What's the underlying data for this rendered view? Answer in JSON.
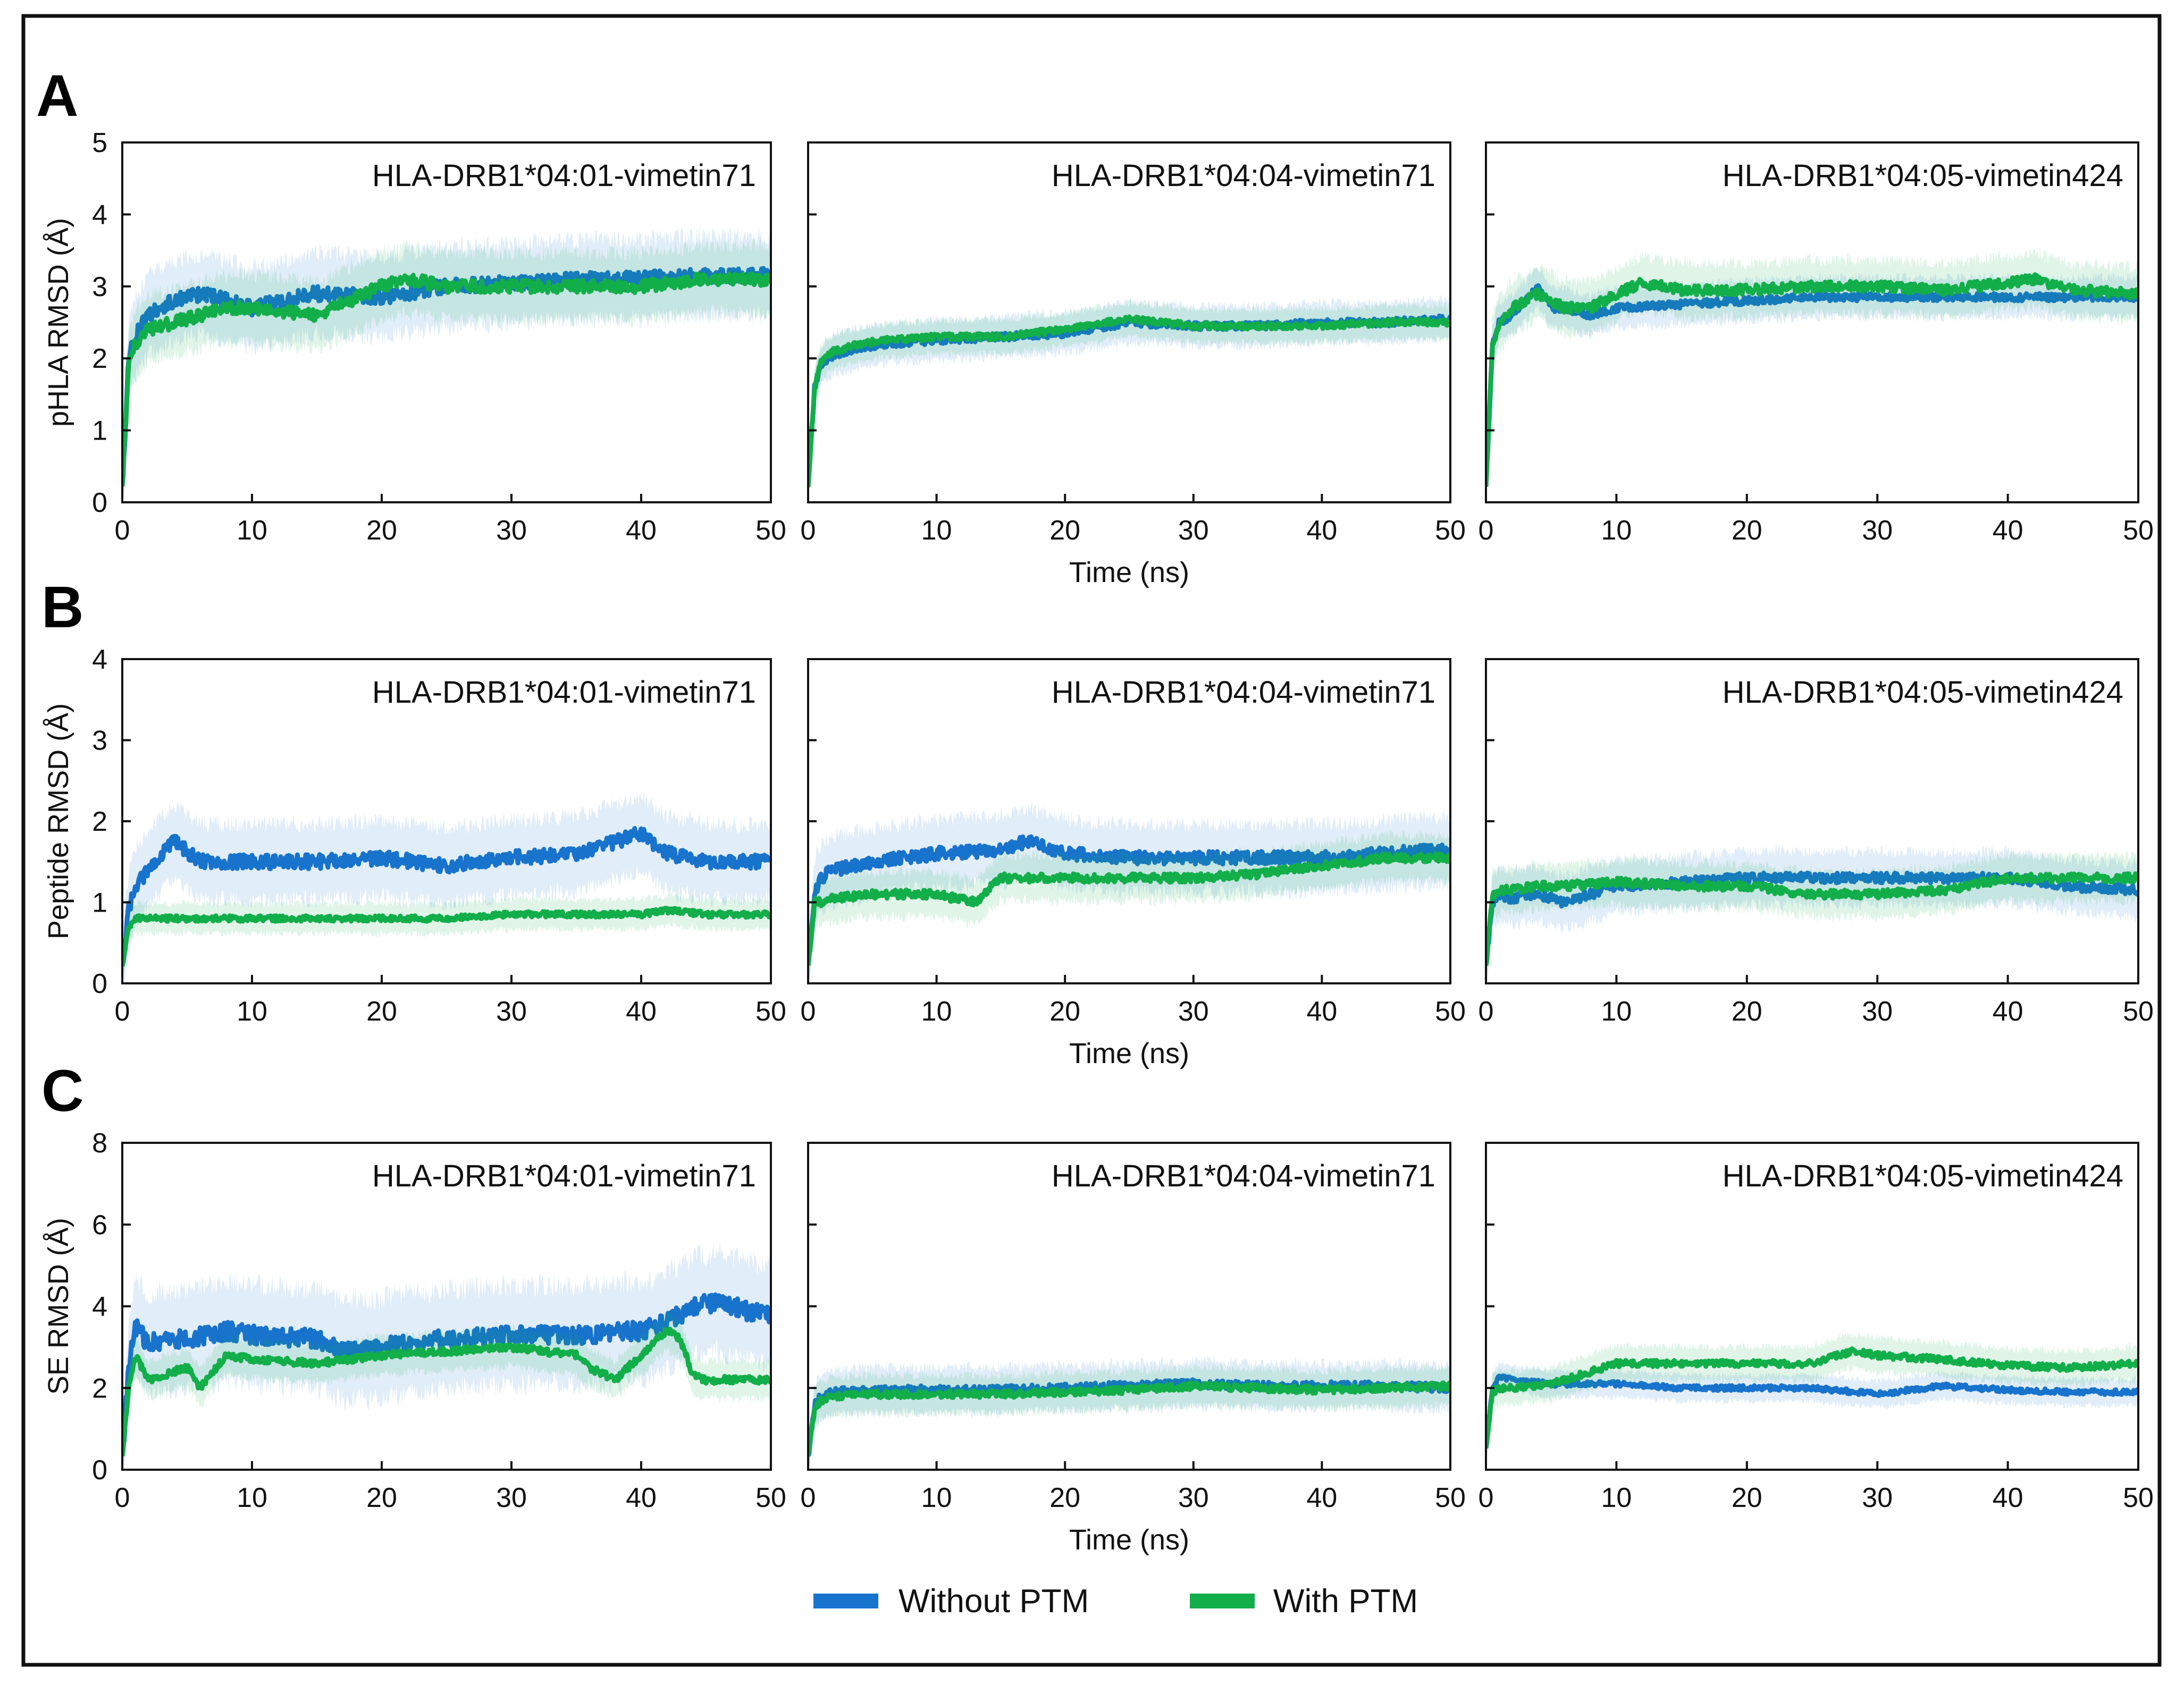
{
  "colors": {
    "without_ptm": "#1873cc",
    "with_ptm": "#12ae4a",
    "frame": "#111111"
  },
  "chart_data": {
    "type": "line",
    "xlabel": "Time (ns)",
    "x_ticks": [
      "0",
      "10",
      "20",
      "30",
      "40",
      "50"
    ],
    "xlim": [
      0,
      50
    ],
    "legend": [
      {
        "name": "Without PTM",
        "color": "#1873cc"
      },
      {
        "name": "With PTM",
        "color": "#12ae4a"
      }
    ],
    "rows": [
      {
        "letter": "A",
        "ylabel": "pHLA RMSD (Å)",
        "ylim": [
          0,
          5
        ],
        "y_ticks": [
          "0",
          "1",
          "2",
          "3",
          "4",
          "5"
        ],
        "panels": [
          {
            "title": "HLA-DRB1*04:01-vimetin71",
            "series": [
              {
                "name": "Without PTM",
                "x": [
                  0,
                  0.5,
                  1,
                  2,
                  4,
                  6,
                  8,
                  10,
                  15,
                  20,
                  25,
                  30,
                  35,
                  40,
                  45,
                  50
                ],
                "y": [
                  0.2,
                  2.0,
                  2.3,
                  2.6,
                  2.8,
                  2.9,
                  2.8,
                  2.7,
                  2.9,
                  2.85,
                  3.0,
                  3.05,
                  3.1,
                  3.1,
                  3.15,
                  3.15
                ],
                "band": 0.6
              },
              {
                "name": "With PTM",
                "x": [
                  0,
                  0.5,
                  1,
                  2,
                  4,
                  6,
                  8,
                  10,
                  15,
                  20,
                  22,
                  25,
                  30,
                  35,
                  40,
                  45,
                  50
                ],
                "y": [
                  0.2,
                  1.9,
                  2.2,
                  2.4,
                  2.5,
                  2.6,
                  2.7,
                  2.7,
                  2.6,
                  3.0,
                  3.1,
                  3.0,
                  3.0,
                  3.0,
                  3.0,
                  3.1,
                  3.1
                ],
                "band": 0.5
              }
            ]
          },
          {
            "title": "HLA-DRB1*04:04-vimetin71",
            "series": [
              {
                "name": "Without PTM",
                "x": [
                  0,
                  0.5,
                  1,
                  2,
                  4,
                  6,
                  10,
                  15,
                  20,
                  25,
                  30,
                  35,
                  40,
                  45,
                  50
                ],
                "y": [
                  0.2,
                  1.6,
                  1.9,
                  2.05,
                  2.15,
                  2.2,
                  2.25,
                  2.3,
                  2.35,
                  2.5,
                  2.45,
                  2.45,
                  2.5,
                  2.5,
                  2.55
                ],
                "band": 0.3
              },
              {
                "name": "With PTM",
                "x": [
                  0,
                  0.5,
                  1,
                  2,
                  4,
                  6,
                  10,
                  15,
                  20,
                  25,
                  30,
                  35,
                  40,
                  45,
                  50
                ],
                "y": [
                  0.2,
                  1.6,
                  1.95,
                  2.1,
                  2.2,
                  2.25,
                  2.3,
                  2.3,
                  2.4,
                  2.55,
                  2.45,
                  2.45,
                  2.45,
                  2.5,
                  2.5
                ],
                "band": 0.25
              }
            ]
          },
          {
            "title": "HLA-DRB1*04:05-vimetin424",
            "series": [
              {
                "name": "Without PTM",
                "x": [
                  0,
                  0.5,
                  1,
                  2,
                  3,
                  4,
                  5,
                  6,
                  8,
                  10,
                  15,
                  20,
                  25,
                  30,
                  35,
                  40,
                  45,
                  50
                ],
                "y": [
                  0.2,
                  2.2,
                  2.5,
                  2.6,
                  2.8,
                  3.0,
                  2.7,
                  2.7,
                  2.6,
                  2.7,
                  2.75,
                  2.8,
                  2.85,
                  2.85,
                  2.85,
                  2.85,
                  2.85,
                  2.85
                ],
                "band": 0.3
              },
              {
                "name": "With PTM",
                "x": [
                  0,
                  0.5,
                  1,
                  2,
                  3,
                  4,
                  5,
                  6,
                  8,
                  10,
                  12,
                  15,
                  20,
                  25,
                  30,
                  35,
                  40,
                  42,
                  45,
                  50
                ],
                "y": [
                  0.2,
                  2.2,
                  2.5,
                  2.7,
                  2.8,
                  2.9,
                  2.8,
                  2.7,
                  2.7,
                  2.9,
                  3.05,
                  2.95,
                  2.95,
                  3.0,
                  3.0,
                  2.95,
                  3.05,
                  3.1,
                  2.95,
                  2.9
                ],
                "band": 0.4
              }
            ]
          }
        ]
      },
      {
        "letter": "B",
        "ylabel": "Peptide RMSD (Å)",
        "ylim": [
          0,
          4
        ],
        "y_ticks": [
          "0",
          "1",
          "2",
          "3",
          "4"
        ],
        "panels": [
          {
            "title": "HLA-DRB1*04:01-vimetin71",
            "series": [
              {
                "name": "Without PTM",
                "x": [
                  0,
                  0.5,
                  1,
                  2,
                  3,
                  4,
                  6,
                  10,
                  15,
                  20,
                  25,
                  30,
                  35,
                  38,
                  40,
                  42,
                  45,
                  50
                ],
                "y": [
                  0.2,
                  0.9,
                  1.2,
                  1.4,
                  1.6,
                  1.75,
                  1.5,
                  1.5,
                  1.5,
                  1.55,
                  1.45,
                  1.55,
                  1.6,
                  1.75,
                  1.85,
                  1.6,
                  1.5,
                  1.5
                ],
                "band": 0.5
              },
              {
                "name": "With PTM",
                "x": [
                  0,
                  0.5,
                  1,
                  2,
                  5,
                  10,
                  15,
                  20,
                  25,
                  30,
                  35,
                  40,
                  42,
                  45,
                  50
                ],
                "y": [
                  0.2,
                  0.7,
                  0.8,
                  0.8,
                  0.8,
                  0.8,
                  0.8,
                  0.8,
                  0.8,
                  0.85,
                  0.85,
                  0.85,
                  0.9,
                  0.85,
                  0.85
                ],
                "band": 0.2
              }
            ]
          },
          {
            "title": "HLA-DRB1*04:04-vimetin71",
            "series": [
              {
                "name": "Without PTM",
                "x": [
                  0,
                  0.5,
                  1,
                  2,
                  5,
                  10,
                  15,
                  17,
                  20,
                  25,
                  30,
                  35,
                  40,
                  45,
                  50
                ],
                "y": [
                  0.2,
                  1.1,
                  1.3,
                  1.4,
                  1.5,
                  1.6,
                  1.65,
                  1.75,
                  1.6,
                  1.55,
                  1.55,
                  1.55,
                  1.55,
                  1.6,
                  1.65
                ],
                "band": 0.45
              },
              {
                "name": "With PTM",
                "x": [
                  0,
                  0.5,
                  1,
                  2,
                  5,
                  10,
                  13,
                  15,
                  20,
                  25,
                  30,
                  35,
                  40,
                  45,
                  50
                ],
                "y": [
                  0.2,
                  1.0,
                  1.0,
                  1.05,
                  1.1,
                  1.1,
                  1.0,
                  1.3,
                  1.3,
                  1.3,
                  1.3,
                  1.35,
                  1.45,
                  1.55,
                  1.55
                ],
                "band": 0.3
              }
            ]
          },
          {
            "title": "HLA-DRB1*04:05-vimetin424",
            "series": [
              {
                "name": "Without PTM",
                "x": [
                  0,
                  0.5,
                  1,
                  2,
                  4,
                  6,
                  10,
                  15,
                  20,
                  25,
                  30,
                  35,
                  40,
                  45,
                  50
                ],
                "y": [
                  0.2,
                  1.0,
                  1.1,
                  1.05,
                  1.1,
                  1.0,
                  1.2,
                  1.25,
                  1.3,
                  1.3,
                  1.3,
                  1.3,
                  1.3,
                  1.2,
                  1.15
                ],
                "band": 0.35
              },
              {
                "name": "With PTM",
                "x": [
                  0,
                  0.5,
                  1,
                  2,
                  4,
                  6,
                  10,
                  15,
                  20,
                  25,
                  30,
                  35,
                  40,
                  45,
                  50
                ],
                "y": [
                  0.2,
                  1.1,
                  1.15,
                  1.15,
                  1.2,
                  1.2,
                  1.25,
                  1.2,
                  1.2,
                  1.1,
                  1.1,
                  1.15,
                  1.3,
                  1.3,
                  1.3
                ],
                "band": 0.3
              }
            ]
          }
        ]
      },
      {
        "letter": "C",
        "ylabel": "SE RMSD (Å)",
        "ylim": [
          0,
          8
        ],
        "y_ticks": [
          "0",
          "2",
          "4",
          "6",
          "8"
        ],
        "panels": [
          {
            "title": "HLA-DRB1*04:01-vimetin71",
            "series": [
              {
                "name": "Without PTM",
                "x": [
                  0,
                  0.5,
                  1,
                  2,
                  5,
                  8,
                  10,
                  15,
                  17,
                  20,
                  25,
                  30,
                  35,
                  40,
                  42,
                  44,
                  46,
                  48,
                  50
                ],
                "y": [
                  0.3,
                  2.5,
                  3.5,
                  3.1,
                  3.2,
                  3.4,
                  3.3,
                  3.2,
                  2.9,
                  3.0,
                  3.2,
                  3.3,
                  3.3,
                  3.4,
                  3.6,
                  4.0,
                  4.1,
                  3.9,
                  3.8
                ],
                "band": 1.3
              },
              {
                "name": "With PTM",
                "x": [
                  0,
                  0.5,
                  1,
                  2,
                  3,
                  5,
                  6,
                  8,
                  10,
                  15,
                  20,
                  25,
                  30,
                  35,
                  36,
                  38,
                  40,
                  42,
                  43,
                  44,
                  45,
                  50
                ],
                "y": [
                  0.3,
                  2.0,
                  2.8,
                  2.2,
                  2.3,
                  2.5,
                  2.0,
                  2.8,
                  2.7,
                  2.6,
                  2.8,
                  2.9,
                  3.0,
                  2.8,
                  2.5,
                  2.2,
                  2.8,
                  3.4,
                  3.2,
                  2.3,
                  2.2,
                  2.2
                ],
                "band": 0.5
              }
            ]
          },
          {
            "title": "HLA-DRB1*04:04-vimetin71",
            "series": [
              {
                "name": "Without PTM",
                "x": [
                  0,
                  0.5,
                  1,
                  2,
                  5,
                  10,
                  15,
                  20,
                  25,
                  30,
                  35,
                  40,
                  45,
                  50
                ],
                "y": [
                  0.3,
                  1.6,
                  1.8,
                  1.9,
                  1.95,
                  1.95,
                  1.95,
                  2.0,
                  2.05,
                  2.1,
                  2.05,
                  2.05,
                  2.05,
                  2.0
                ],
                "band": 0.6
              },
              {
                "name": "With PTM",
                "x": [
                  0,
                  0.5,
                  1,
                  2,
                  5,
                  10,
                  15,
                  20,
                  25,
                  30,
                  35,
                  40,
                  45,
                  50
                ],
                "y": [
                  0.3,
                  1.5,
                  1.7,
                  1.8,
                  1.85,
                  1.85,
                  1.85,
                  1.9,
                  1.95,
                  2.05,
                  2.0,
                  1.95,
                  2.0,
                  2.05
                ],
                "band": 0.5
              }
            ]
          },
          {
            "title": "HLA-DRB1*04:05-vimetin424",
            "series": [
              {
                "name": "Without PTM",
                "x": [
                  0,
                  0.5,
                  1,
                  2,
                  5,
                  10,
                  15,
                  20,
                  25,
                  30,
                  35,
                  40,
                  45,
                  50
                ],
                "y": [
                  0.5,
                  2.0,
                  2.3,
                  2.2,
                  2.1,
                  2.1,
                  2.0,
                  2.0,
                  2.0,
                  1.85,
                  2.05,
                  1.95,
                  1.9,
                  1.9
                ],
                "band": 0.35
              },
              {
                "name": "With PTM",
                "x": [
                  0,
                  0.5,
                  1,
                  2,
                  5,
                  10,
                  15,
                  20,
                  25,
                  28,
                  30,
                  35,
                  40,
                  45,
                  50
                ],
                "y": [
                  0.5,
                  1.9,
                  2.0,
                  2.0,
                  2.1,
                  2.6,
                  2.6,
                  2.6,
                  2.6,
                  2.9,
                  2.8,
                  2.7,
                  2.55,
                  2.5,
                  2.6
                ],
                "band": 0.45
              }
            ]
          }
        ]
      }
    ]
  }
}
